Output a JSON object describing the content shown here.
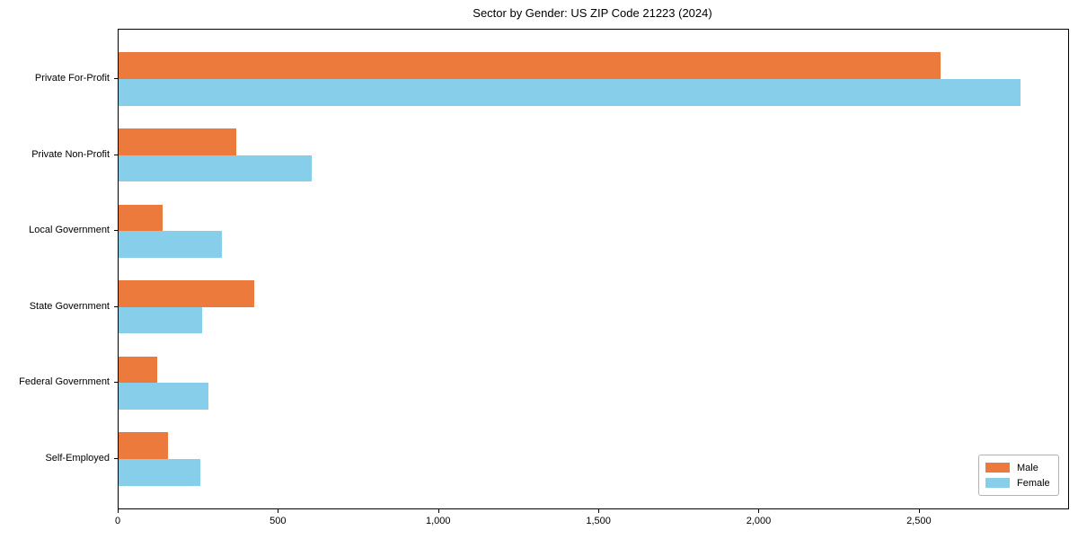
{
  "chart_data": {
    "type": "bar",
    "orientation": "horizontal",
    "title": "Sector by Gender: US ZIP Code 21223 (2024)",
    "xlabel": "",
    "ylabel": "",
    "categories": [
      "Private For-Profit",
      "Private Non-Profit",
      "Local Government",
      "State Government",
      "Federal Government",
      "Self-Employed"
    ],
    "series": [
      {
        "name": "Male",
        "color": "#eb7a3c",
        "values": [
          2565,
          367,
          138,
          424,
          121,
          153
        ]
      },
      {
        "name": "Female",
        "color": "#87ceeb",
        "values": [
          2815,
          603,
          322,
          260,
          279,
          255
        ]
      }
    ],
    "xlim": [
      0,
      2963
    ],
    "xticks": [
      {
        "value": 0,
        "label": "0"
      },
      {
        "value": 500,
        "label": "500"
      },
      {
        "value": 1000,
        "label": "1,000"
      },
      {
        "value": 1500,
        "label": "1,500"
      },
      {
        "value": 2000,
        "label": "2,000"
      },
      {
        "value": 2500,
        "label": "2,500"
      }
    ],
    "grid": false,
    "legend_position": "lower right",
    "spine_color": "#000000",
    "background_color": "#ffffff"
  }
}
